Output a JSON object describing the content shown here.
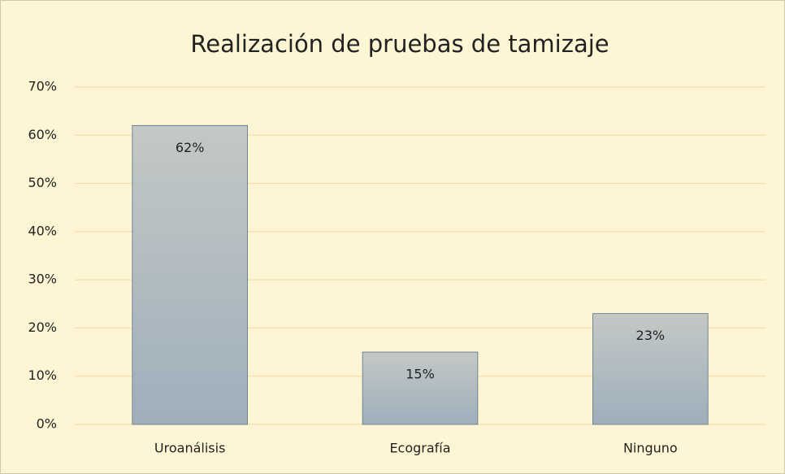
{
  "chart_data": {
    "type": "bar",
    "title": "Realización de pruebas de tamizaje",
    "categories": [
      "Uroanálisis",
      "Ecografía",
      "Ninguno"
    ],
    "values": [
      62,
      15,
      23
    ],
    "value_labels": [
      "62%",
      "15%",
      "23%"
    ],
    "color": "#aab6be",
    "ylim": [
      0,
      70
    ],
    "yticks": [
      {
        "value": 0,
        "label": "0%"
      },
      {
        "value": 10,
        "label": "10%"
      },
      {
        "value": 20,
        "label": "20%"
      },
      {
        "value": 30,
        "label": "30%"
      },
      {
        "value": 40,
        "label": "40%"
      },
      {
        "value": 50,
        "label": "50%"
      },
      {
        "value": 60,
        "label": "60%"
      },
      {
        "value": 70,
        "label": "70%"
      }
    ],
    "grid": true
  }
}
